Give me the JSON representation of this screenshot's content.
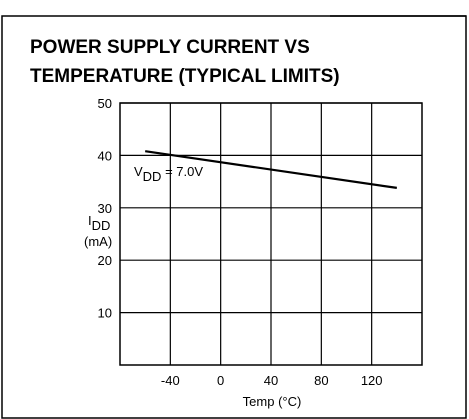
{
  "chart_data": {
    "type": "line",
    "title": [
      "POWER SUPPLY CURRENT VS",
      "TEMPERATURE (TYPICAL LIMITS)"
    ],
    "x_label": "Temp (°C)",
    "y_label": [
      "I",
      "DD",
      "(mA)"
    ],
    "annotation": [
      "V",
      "DD",
      " = 7.0V"
    ],
    "x": [
      -60,
      140
    ],
    "series": [
      {
        "color": "#000000",
        "values": [
          40.8,
          33.8
        ]
      }
    ],
    "xlim": [
      -80,
      160
    ],
    "xticks": [
      -40,
      0,
      40,
      80,
      120
    ],
    "ylim": [
      0,
      50
    ],
    "yticks": [
      10,
      20,
      30,
      40,
      50
    ],
    "grid": true
  }
}
